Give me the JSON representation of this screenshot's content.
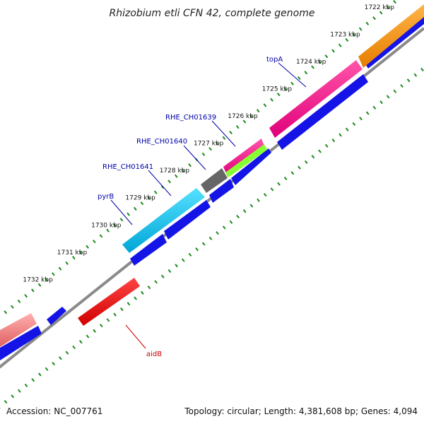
{
  "title": "Rhizobium etli CFN 42, complete genome",
  "footer": {
    "accession": "Accession: NC_007761",
    "summary": "Topology: circular; Length: 4,381,608 bp; Genes: 4,094"
  },
  "colors": {
    "backbone": "#8a8a8a",
    "tick": "#1a8a1a",
    "strand_cds": "#1414e6",
    "label_blue": "#0000aa",
    "label_red": "#cc0000"
  },
  "ticks": [
    {
      "label": "1722 kbp",
      "kbp": 1722
    },
    {
      "label": "1723 kbp",
      "kbp": 1723
    },
    {
      "label": "1724 kbp",
      "kbp": 1724
    },
    {
      "label": "1725 kbp",
      "kbp": 1725
    },
    {
      "label": "1726 kbp",
      "kbp": 1726
    },
    {
      "label": "1727 kbp",
      "kbp": 1727
    },
    {
      "label": "1728 kbp",
      "kbp": 1728
    },
    {
      "label": "1729 kbp",
      "kbp": 1729
    },
    {
      "label": "1730 kbp",
      "kbp": 1730
    },
    {
      "label": "1731 kbp",
      "kbp": 1731
    },
    {
      "label": "1732 kbp",
      "kbp": 1732
    }
  ],
  "genes": [
    {
      "label": "topA",
      "color_role": "label_blue"
    },
    {
      "label": "RHE_CH01639",
      "color_role": "label_blue"
    },
    {
      "label": "RHE_CH01640",
      "color_role": "label_blue"
    },
    {
      "label": "RHE_CH01641",
      "color_role": "label_blue"
    },
    {
      "label": "pyrB",
      "color_role": "label_blue"
    },
    {
      "label": "aidB",
      "color_role": "label_red"
    }
  ]
}
